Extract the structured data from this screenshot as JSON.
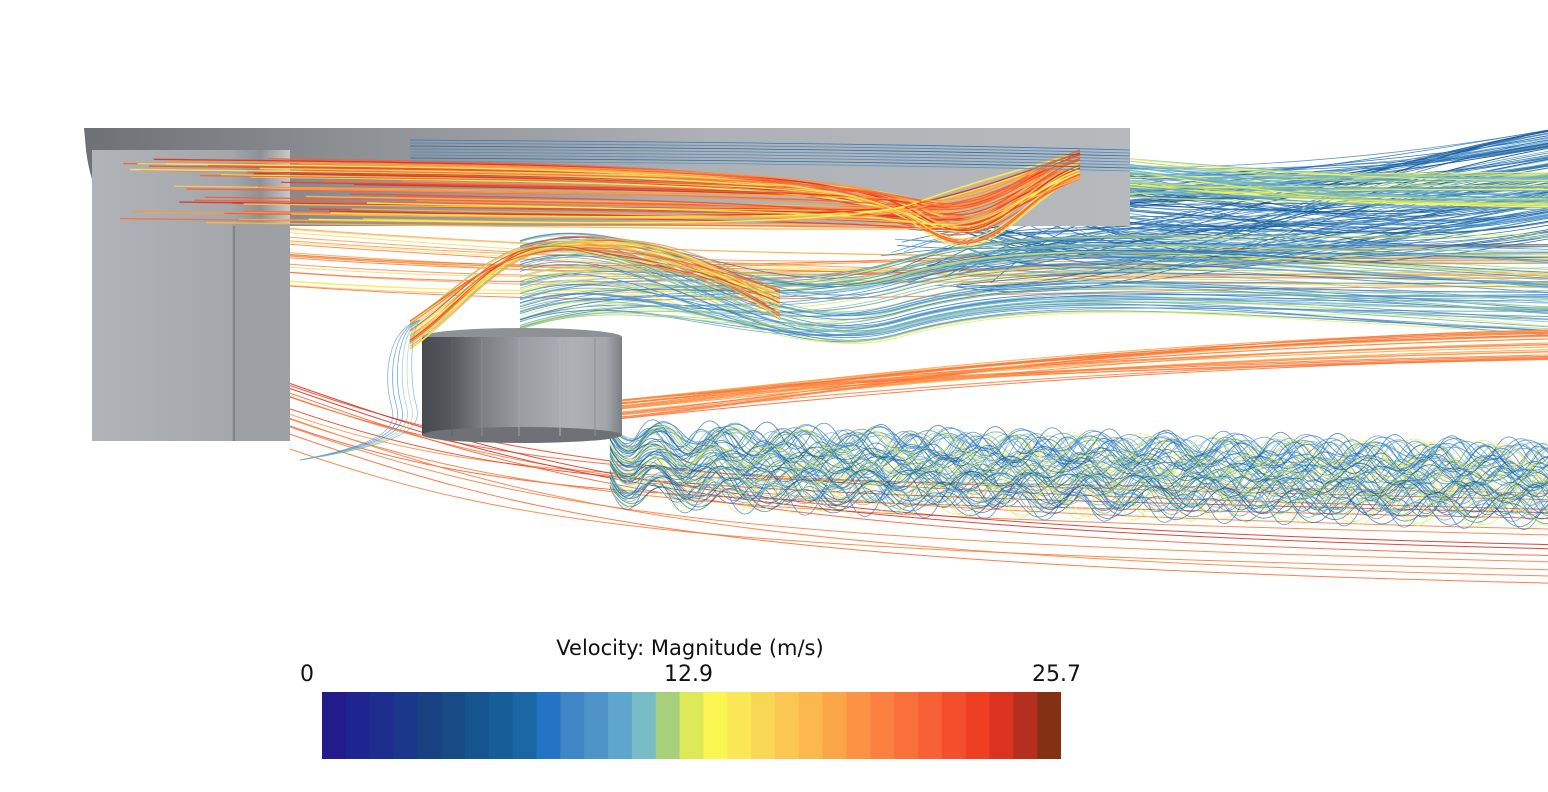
{
  "legend": {
    "title": "Velocity: Magnitude (m/s)",
    "min_label": "0",
    "mid_label": "12.9",
    "max_label": "25.7"
  },
  "colormap": [
    "#211c8a",
    "#1f2590",
    "#1d2e8e",
    "#1b378a",
    "#194181",
    "#184b84",
    "#16548d",
    "#175e98",
    "#1a67a4",
    "#2573c4",
    "#3f86c4",
    "#4e94c9",
    "#5ea6ce",
    "#78bdc6",
    "#a8d07a",
    "#dcea5a",
    "#fbf552",
    "#fae756",
    "#f8d755",
    "#fcc653",
    "#fcb84d",
    "#faa548",
    "#fd9245",
    "#fc8140",
    "#fa703b",
    "#f86136",
    "#f44f2d",
    "#ee3f22",
    "#da3321",
    "#b42f1d",
    "#843014"
  ]
}
